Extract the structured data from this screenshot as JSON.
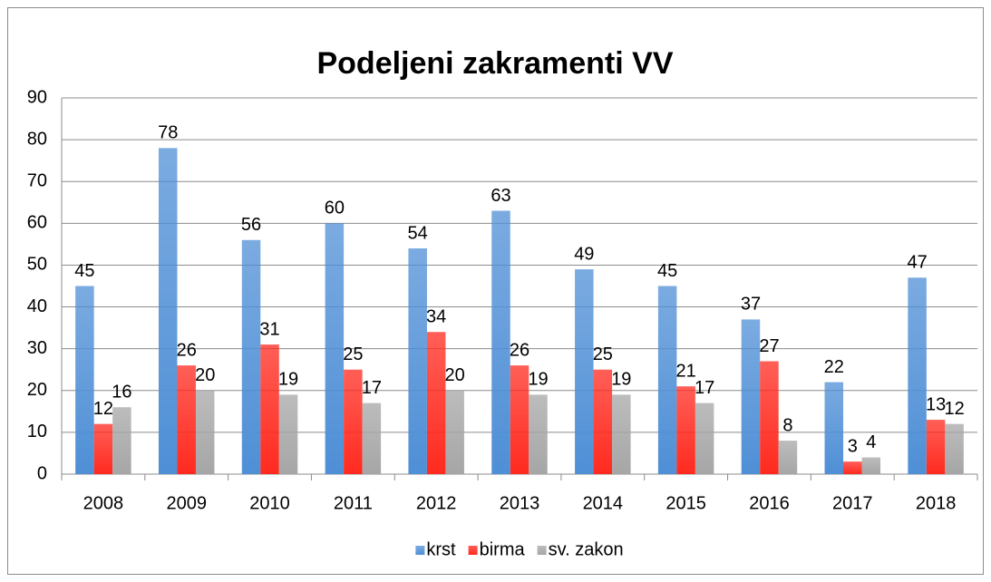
{
  "chart_data": {
    "type": "bar",
    "title": "Podeljeni zakramenti VV",
    "categories": [
      "2008",
      "2009",
      "2010",
      "2011",
      "2012",
      "2013",
      "2014",
      "2015",
      "2016",
      "2017",
      "2018"
    ],
    "series": [
      {
        "name": "krst",
        "color": "#4f8fd6",
        "values": [
          45,
          78,
          56,
          60,
          54,
          63,
          49,
          45,
          37,
          22,
          47
        ]
      },
      {
        "name": "birma",
        "color": "#ff2a1f",
        "values": [
          12,
          26,
          31,
          25,
          34,
          26,
          25,
          21,
          27,
          3,
          13
        ]
      },
      {
        "name": "sv. zakon",
        "color": "#a6a6a6",
        "values": [
          16,
          20,
          19,
          17,
          20,
          19,
          19,
          17,
          8,
          4,
          12
        ]
      }
    ],
    "ylim": [
      0,
      90
    ],
    "yticks": [
      0,
      10,
      20,
      30,
      40,
      50,
      60,
      70,
      80,
      90
    ],
    "grid": true,
    "legend": "bottom"
  }
}
